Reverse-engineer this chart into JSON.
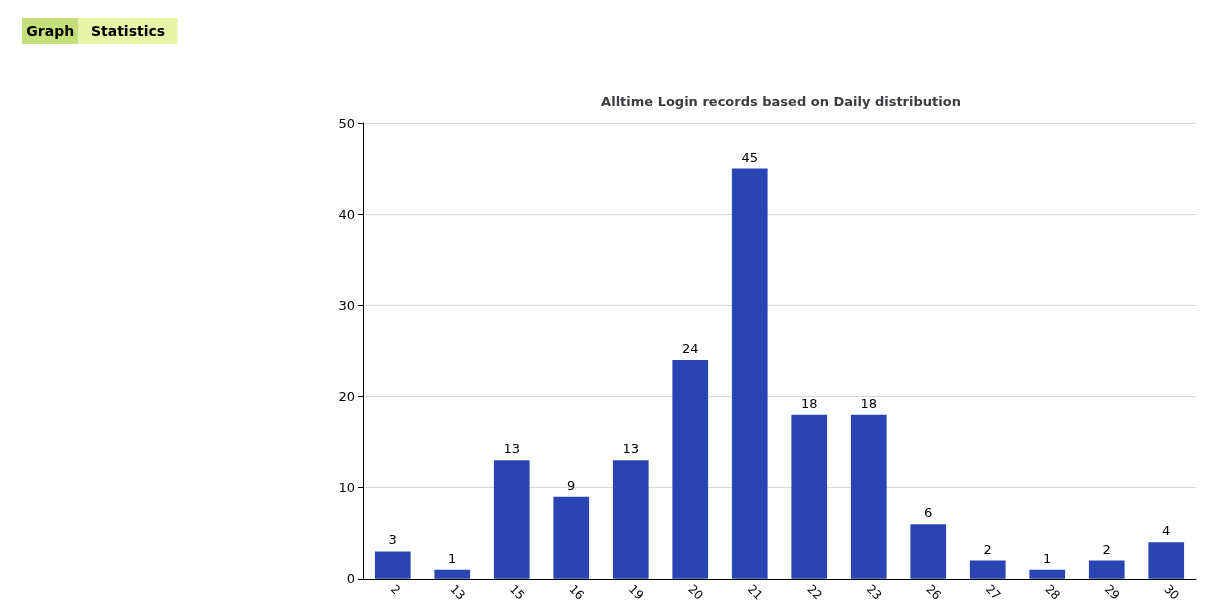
{
  "chart_data": {
    "type": "bar",
    "title": "Alltime Login records based on Daily distribution",
    "categories": [
      "2",
      "13",
      "15",
      "16",
      "19",
      "20",
      "21",
      "22",
      "23",
      "26",
      "27",
      "28",
      "29",
      "30"
    ],
    "values": [
      3,
      1,
      13,
      9,
      13,
      24,
      45,
      18,
      18,
      6,
      2,
      1,
      2,
      4
    ],
    "color": "#2b44b4",
    "ylim": [
      0,
      50
    ],
    "yticks": [
      0,
      10,
      20,
      30,
      40,
      50
    ],
    "grid": "y",
    "data_labels": true,
    "annotations": [
      "Graph",
      "Statistics"
    ]
  }
}
